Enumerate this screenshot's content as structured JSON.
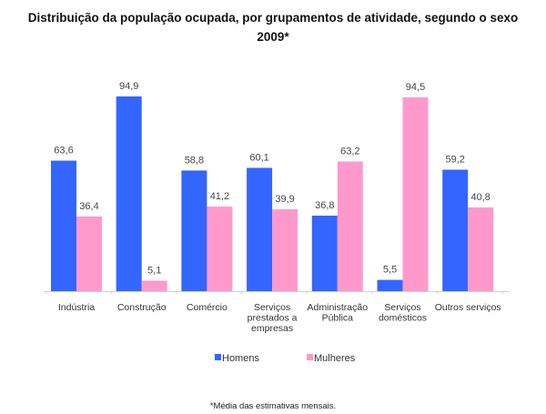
{
  "chart_data": {
    "type": "bar",
    "title": "Distribuição da população ocupada, por grupamentos de atividade, segundo o sexo",
    "subtitle": "2009*",
    "categories": [
      [
        "Indústria"
      ],
      [
        "Construção"
      ],
      [
        "Comércio"
      ],
      [
        "Serviços",
        "prestados a",
        "empresas"
      ],
      [
        "Administração",
        "Pública"
      ],
      [
        "Serviços",
        "domésticos"
      ],
      [
        "Outros serviços"
      ]
    ],
    "series": [
      {
        "name": "Homens",
        "color": "#3366ff",
        "values": [
          63.6,
          94.9,
          58.8,
          60.1,
          36.8,
          5.5,
          59.2
        ],
        "labels": [
          "63,6",
          "94,9",
          "58,8",
          "60,1",
          "36,8",
          "5,5",
          "59,2"
        ]
      },
      {
        "name": "Mulheres",
        "color": "#ff99cc",
        "values": [
          36.4,
          5.1,
          41.2,
          39.9,
          63.2,
          94.5,
          40.8
        ],
        "labels": [
          "36,4",
          "5,1",
          "41,2",
          "39,9",
          "63,2",
          "94,5",
          "40,8"
        ]
      }
    ],
    "xlabel": "",
    "ylabel": "",
    "ylim": [
      0,
      100
    ],
    "grid": false,
    "legend": "bottom",
    "footnote": "*Média das estimativas mensais."
  }
}
